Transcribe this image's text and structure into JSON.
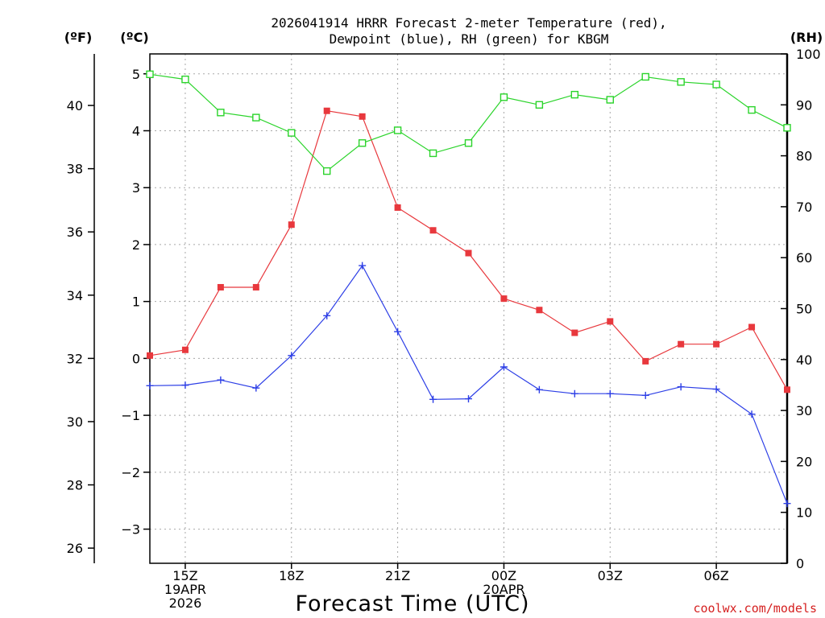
{
  "chart_data": {
    "type": "line",
    "title_lines": [
      "2026041914 HRRR Forecast 2-meter Temperature (red),",
      "Dewpoint (blue), RH (green) for KBGM"
    ],
    "xlabel": "Forecast Time (UTC)",
    "credit": "coolwx.com/models",
    "units": {
      "fahrenheit": "(ºF)",
      "celsius": "(ºC)",
      "rh": "(RH)"
    },
    "hours": [
      14,
      15,
      16,
      17,
      18,
      19,
      20,
      21,
      22,
      23,
      24,
      25,
      26,
      27,
      28,
      29,
      30,
      31,
      32
    ],
    "xlim": [
      14,
      32
    ],
    "ylim_c": [
      -3.6,
      5.35
    ],
    "ylim_rh": [
      0,
      100
    ],
    "x_ticks": [
      {
        "hour": 15,
        "lines": [
          "15Z",
          "19APR",
          "2026"
        ]
      },
      {
        "hour": 18,
        "lines": [
          "18Z"
        ]
      },
      {
        "hour": 21,
        "lines": [
          "21Z"
        ]
      },
      {
        "hour": 24,
        "lines": [
          "00Z",
          "20APR"
        ]
      },
      {
        "hour": 27,
        "lines": [
          "03Z"
        ]
      },
      {
        "hour": 30,
        "lines": [
          "06Z"
        ]
      }
    ],
    "c_ticks": [
      5,
      4,
      3,
      2,
      1,
      0,
      -1,
      -2,
      -3
    ],
    "c_tick_labels": [
      "5",
      "4",
      "3",
      "2",
      "1",
      "0",
      "−1",
      "−2",
      "−3"
    ],
    "f_ticks": [
      40,
      38,
      36,
      34,
      32,
      30,
      28,
      26
    ],
    "rh_ticks": [
      100,
      90,
      80,
      70,
      60,
      50,
      40,
      30,
      20,
      10,
      0
    ],
    "grid": true,
    "series": [
      {
        "name": "Temperature",
        "unit": "C",
        "color": "#e8383d",
        "marker": "filled-square",
        "values": [
          0.05,
          0.15,
          1.25,
          1.25,
          2.35,
          4.35,
          4.25,
          2.65,
          2.25,
          1.85,
          1.05,
          0.85,
          0.45,
          0.65,
          -0.05,
          0.25,
          0.25,
          0.55,
          -0.55
        ]
      },
      {
        "name": "Dewpoint",
        "unit": "C",
        "color": "#2c3ee6",
        "marker": "plus",
        "values": [
          -0.48,
          -0.47,
          -0.38,
          -0.52,
          0.05,
          0.75,
          1.63,
          0.47,
          -0.72,
          -0.71,
          -0.15,
          -0.55,
          -0.62,
          -0.62,
          -0.65,
          -0.5,
          -0.54,
          -0.98,
          -2.55
        ]
      },
      {
        "name": "RH",
        "unit": "%",
        "color": "#2bd42b",
        "marker": "open-square",
        "values": [
          96,
          95,
          88.5,
          87.5,
          84.5,
          77,
          82.5,
          85,
          80.5,
          82.5,
          91.5,
          90,
          92,
          91,
          95.5,
          94.5,
          94,
          89,
          85.5
        ]
      }
    ]
  }
}
